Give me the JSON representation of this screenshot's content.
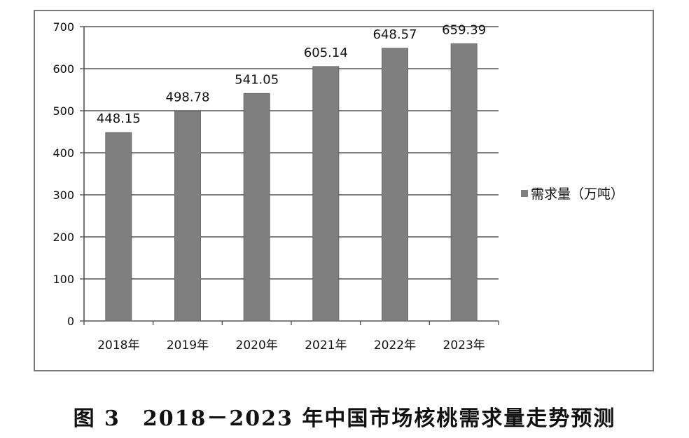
{
  "chart_data": {
    "type": "bar",
    "categories": [
      "2018年",
      "2019年",
      "2020年",
      "2021年",
      "2022年",
      "2023年"
    ],
    "series": [
      {
        "name": "需求量（万吨）",
        "values": [
          448.15,
          498.78,
          541.05,
          605.14,
          648.57,
          659.39
        ],
        "color": "#7f7f7f"
      }
    ],
    "data_labels": [
      "448.15",
      "498.78",
      "541.05",
      "605.14",
      "648.57",
      "659.39"
    ],
    "ylim": [
      0,
      700
    ],
    "yticks": [
      0,
      100,
      200,
      300,
      400,
      500,
      600,
      700
    ],
    "grid": true,
    "legend_position": "right"
  },
  "caption": "图 3　2018－2023 年中国市场核桃需求量走势预测"
}
